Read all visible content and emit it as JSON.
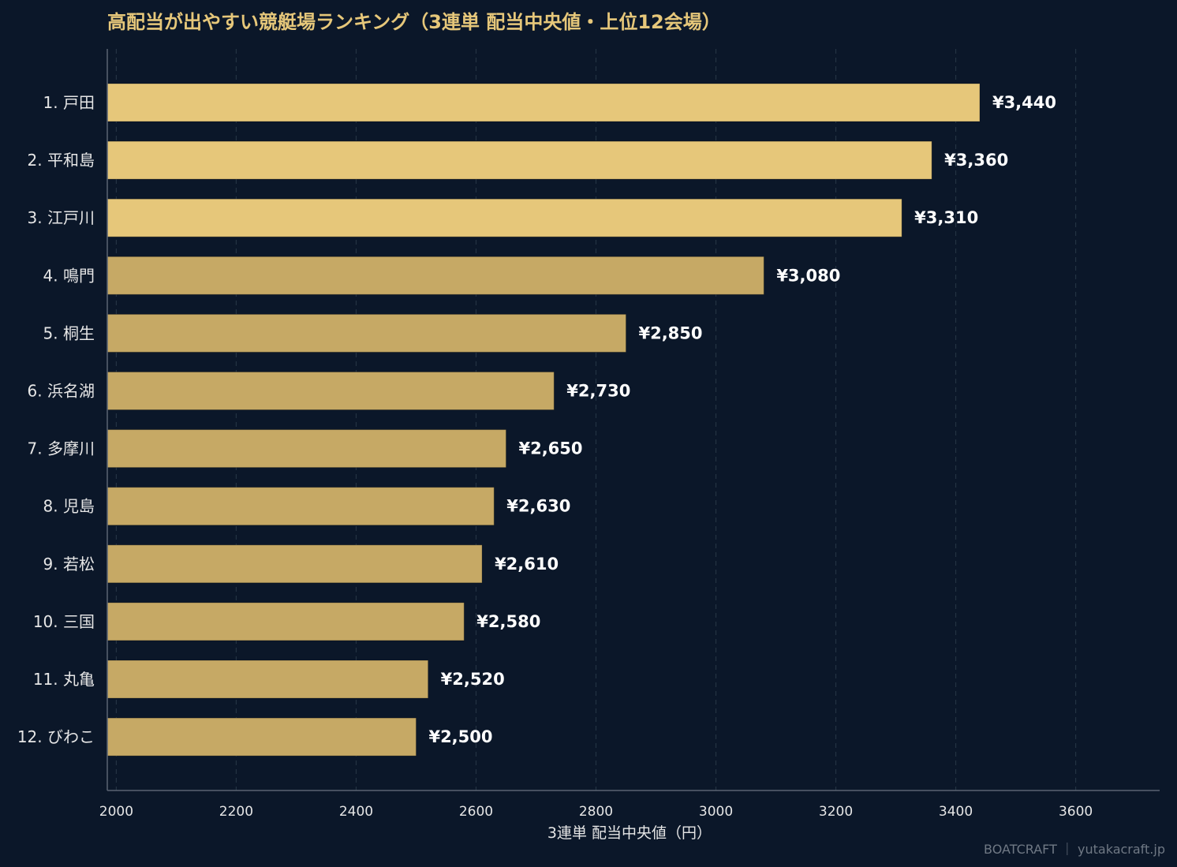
{
  "chart_data": {
    "type": "bar",
    "orientation": "horizontal",
    "title": "高配当が出やすい競艇場ランキング（3連単 配当中央値・上位12会場）",
    "xlabel": "3連単 配当中央値（円）",
    "ylabel": "",
    "xlim": [
      1985,
      3740
    ],
    "xticks": [
      2000,
      2200,
      2400,
      2600,
      2800,
      3000,
      3200,
      3400,
      3600
    ],
    "grid": "vertical-dashed",
    "categories": [
      "1. 戸田",
      "2. 平和島",
      "3. 江戸川",
      "4. 鳴門",
      "5. 桐生",
      "6. 浜名湖",
      "7. 多摩川",
      "8. 児島",
      "9. 若松",
      "10. 三国",
      "11. 丸亀",
      "12. びわこ"
    ],
    "values": [
      3440,
      3360,
      3310,
      3080,
      2850,
      2730,
      2650,
      2630,
      2610,
      2580,
      2520,
      2500
    ],
    "value_labels": [
      "¥3,440",
      "¥3,360",
      "¥3,310",
      "¥3,080",
      "¥2,850",
      "¥2,730",
      "¥2,650",
      "¥2,630",
      "¥2,610",
      "¥2,580",
      "¥2,520",
      "¥2,500"
    ],
    "top_colors": [
      "#e6c77a",
      "#e6c77a",
      "#e6c77a"
    ],
    "other_color": "#c6a965"
  },
  "footer": "BOATCRAFT ｜ yutakacraft.jp",
  "colors": {
    "background": "#0b1729",
    "title": "#e6c77a",
    "text": "#e6e6e6",
    "value_text": "#ffffff",
    "grid": "#243343",
    "axis": "#5a6472",
    "footer": "#6f7884"
  }
}
